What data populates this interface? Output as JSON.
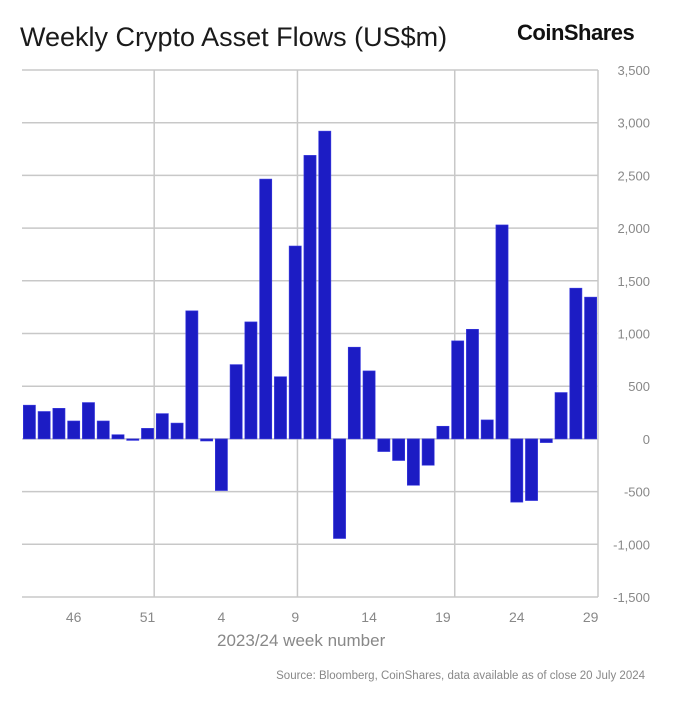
{
  "chart_data": {
    "type": "bar",
    "title": "Weekly Crypto Asset Flows (US$m)",
    "xlabel": "2023/24 week number",
    "ylabel": "",
    "ylim": [
      -1500,
      3500
    ],
    "yticks": [
      3500,
      3000,
      2500,
      2000,
      1500,
      1000,
      500,
      0,
      -500,
      -1000,
      -1500
    ],
    "ytick_labels": [
      "3,500",
      "3,000",
      "2,500",
      "2,000",
      "1,500",
      "1,000",
      "500",
      "0",
      "-500",
      "-1,000",
      "-1,500"
    ],
    "categories": [
      "43",
      "44",
      "45",
      "46",
      "47",
      "48",
      "49",
      "50",
      "51",
      "52",
      "1",
      "2",
      "3",
      "4",
      "5",
      "6",
      "7",
      "8",
      "9",
      "10",
      "11",
      "12",
      "13",
      "14",
      "15",
      "16",
      "17",
      "18",
      "19",
      "20",
      "21",
      "22",
      "23",
      "24",
      "25",
      "26",
      "27",
      "28",
      "29"
    ],
    "xtick_labels": [
      "46",
      "51",
      "4",
      "9",
      "14",
      "19",
      "24",
      "29"
    ],
    "values": [
      320,
      260,
      290,
      170,
      345,
      170,
      40,
      -10,
      100,
      240,
      150,
      1215,
      -20,
      -490,
      705,
      1110,
      2465,
      590,
      1830,
      2690,
      2920,
      -945,
      870,
      645,
      -120,
      -205,
      -440,
      -250,
      120,
      930,
      1040,
      180,
      2030,
      -600,
      -585,
      -35,
      440,
      1430,
      1345
    ],
    "grid": true,
    "y_axis_side": "right",
    "bar_color": "#1c1cc4"
  },
  "logo": "CoinShares",
  "source": "Source: Bloomberg, CoinShares, data available as of close 20 July 2024"
}
